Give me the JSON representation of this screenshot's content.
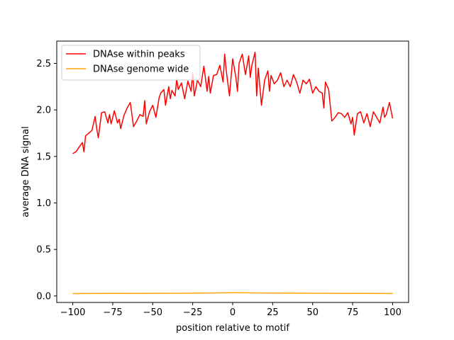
{
  "chart_data": {
    "type": "line",
    "title": "",
    "xlabel": "position relative to motif",
    "ylabel": "average DNA signal",
    "xlim": [
      -110,
      110
    ],
    "ylim": [
      -0.07,
      2.74
    ],
    "xticks": [
      -100,
      -75,
      -50,
      -25,
      0,
      25,
      50,
      75,
      100
    ],
    "xtick_labels": [
      "−100",
      "−75",
      "−50",
      "−25",
      "0",
      "25",
      "50",
      "75",
      "100"
    ],
    "yticks": [
      0.0,
      0.5,
      1.0,
      1.5,
      2.0,
      2.5
    ],
    "ytick_labels": [
      "0.0",
      "0.5",
      "1.0",
      "1.5",
      "2.0",
      "2.5"
    ],
    "grid": false,
    "legend_position": "top-left",
    "series": [
      {
        "name": "DNAse within peaks",
        "color": "#ff0000",
        "x": [
          -100,
          -98,
          -96,
          -94,
          -93,
          -92,
          -90,
          -88,
          -86,
          -85,
          -84,
          -82,
          -80,
          -78,
          -77,
          -76,
          -74,
          -72,
          -71,
          -70,
          -68,
          -66,
          -64,
          -62,
          -60,
          -58,
          -56,
          -55,
          -54,
          -52,
          -50,
          -48,
          -46,
          -45,
          -44,
          -43,
          -42,
          -40,
          -39,
          -38,
          -36,
          -35,
          -34,
          -32,
          -30,
          -28,
          -26,
          -25,
          -24,
          -22,
          -20,
          -18,
          -16,
          -15,
          -14,
          -12,
          -10,
          -8,
          -6,
          -5,
          -4,
          -2,
          0,
          2,
          3,
          4,
          6,
          8,
          10,
          11,
          12,
          14,
          15,
          16,
          18,
          20,
          22,
          23,
          24,
          26,
          28,
          30,
          32,
          34,
          36,
          38,
          40,
          42,
          44,
          46,
          48,
          50,
          52,
          54,
          56,
          57,
          58,
          60,
          62,
          64,
          66,
          68,
          70,
          72,
          74,
          75,
          76,
          78,
          80,
          82,
          84,
          86,
          88,
          90,
          92,
          94,
          95,
          96,
          98,
          100
        ],
        "values": [
          1.53,
          1.55,
          1.6,
          1.65,
          1.55,
          1.72,
          1.75,
          1.78,
          1.93,
          1.8,
          1.7,
          1.97,
          1.98,
          1.86,
          1.95,
          1.85,
          1.99,
          1.86,
          1.9,
          1.8,
          1.94,
          2.02,
          2.08,
          1.82,
          1.88,
          1.95,
          1.93,
          2.1,
          1.85,
          1.98,
          2.05,
          1.92,
          2.13,
          2.18,
          2.2,
          2.22,
          2.05,
          2.25,
          2.12,
          2.21,
          2.15,
          2.33,
          2.22,
          2.29,
          2.12,
          2.31,
          2.2,
          2.4,
          2.15,
          2.32,
          2.25,
          2.47,
          2.2,
          2.36,
          2.18,
          2.37,
          2.38,
          2.48,
          2.3,
          2.6,
          2.42,
          2.15,
          2.55,
          2.35,
          2.2,
          2.5,
          2.6,
          2.38,
          2.58,
          2.35,
          2.48,
          2.62,
          2.15,
          2.45,
          2.05,
          2.32,
          2.42,
          2.2,
          2.37,
          2.28,
          2.32,
          2.4,
          2.25,
          2.32,
          2.25,
          2.38,
          2.3,
          2.18,
          2.32,
          2.28,
          2.33,
          2.18,
          2.25,
          2.2,
          2.18,
          2.02,
          2.3,
          2.22,
          1.88,
          1.92,
          1.97,
          1.96,
          1.92,
          1.97,
          1.85,
          1.92,
          1.73,
          1.96,
          1.98,
          1.86,
          1.96,
          1.82,
          1.98,
          1.92,
          1.86,
          2.03,
          1.92,
          1.95,
          2.08,
          1.91
        ]
      },
      {
        "name": "DNAse genome wide",
        "color": "#ffa500",
        "x": [
          -100,
          -75,
          -50,
          -25,
          -10,
          0,
          10,
          25,
          50,
          75,
          100
        ],
        "values": [
          0.025,
          0.027,
          0.028,
          0.03,
          0.033,
          0.035,
          0.034,
          0.031,
          0.029,
          0.027,
          0.026
        ]
      }
    ]
  }
}
